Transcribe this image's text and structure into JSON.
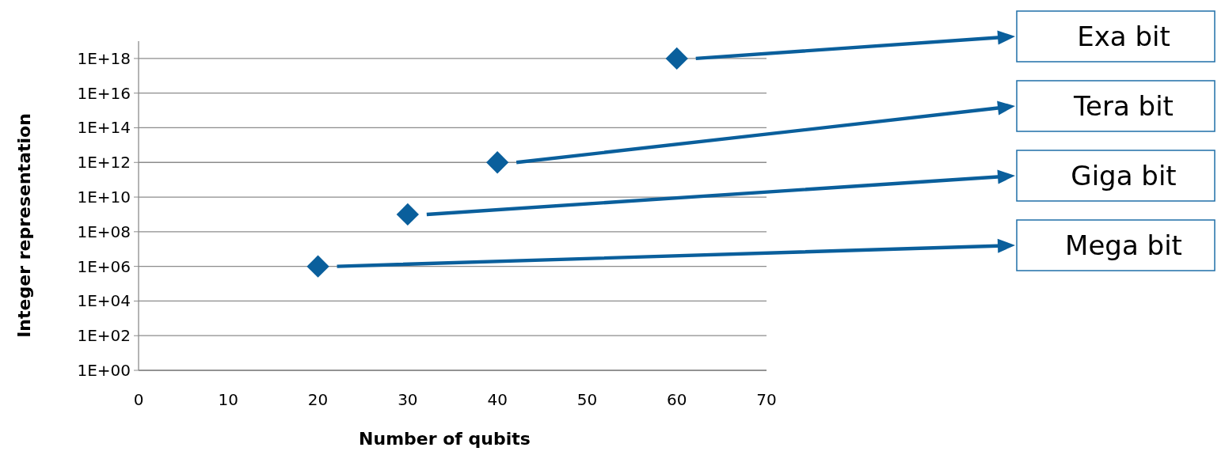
{
  "chart_data": {
    "type": "scatter",
    "xlabel": "Number of qubits",
    "ylabel": "Integer representation",
    "log": "y",
    "grid": "y",
    "marker": "diamond",
    "x": [
      20,
      30,
      40,
      60
    ],
    "series": [
      {
        "color": "#0a5f9c",
        "values": [
          1000000,
          1000000000,
          1000000000000,
          1000000000000000000
        ]
      }
    ],
    "xlim": [
      0,
      70
    ],
    "xticks": [
      0,
      10,
      20,
      30,
      40,
      50,
      60,
      70
    ],
    "ylim": [
      1,
      10000000000000000000
    ],
    "yticks": [
      {
        "value": 1,
        "label": "1E+00"
      },
      {
        "value": 100,
        "label": "1E+02"
      },
      {
        "value": 10000,
        "label": "1E+04"
      },
      {
        "value": 1000000,
        "label": "1E+06"
      },
      {
        "value": 100000000,
        "label": "1E+08"
      },
      {
        "value": 10000000000,
        "label": "1E+10"
      },
      {
        "value": 1000000000000,
        "label": "1E+12"
      },
      {
        "value": 100000000000000,
        "label": "1E+14"
      },
      {
        "value": 10000000000000000,
        "label": "1E+16"
      },
      {
        "value": 1000000000000000000,
        "label": "1E+18"
      }
    ],
    "annotations": [
      "Exa bit",
      "Tera bit",
      "Giga bit",
      "Mega bit"
    ]
  }
}
